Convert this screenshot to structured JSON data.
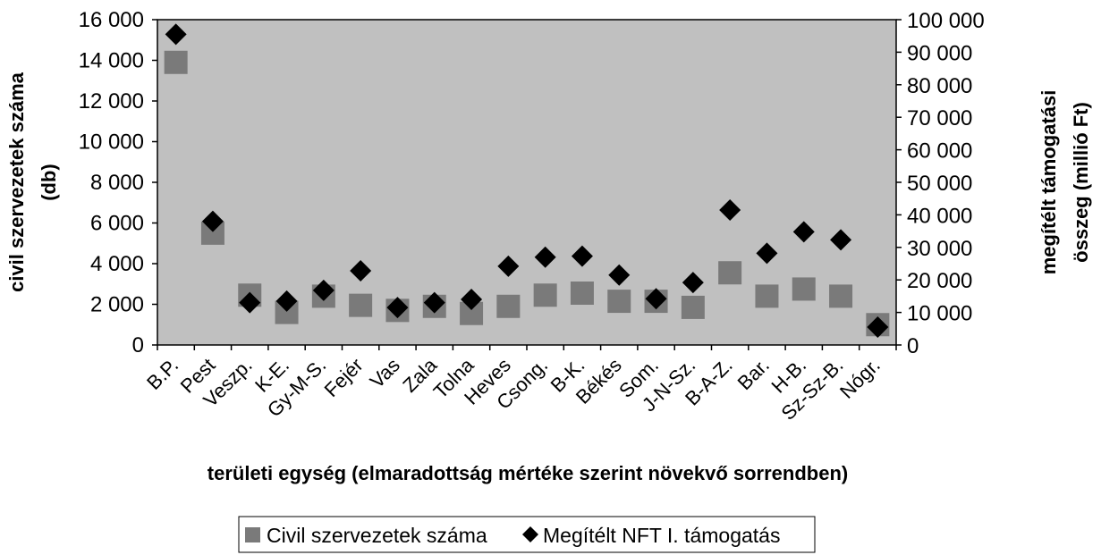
{
  "chart_data": {
    "type": "scatter",
    "categories": [
      "B.P.",
      "Pest",
      "Veszp.",
      "K-E.",
      "Gy-M-S.",
      "Fejér",
      "Vas",
      "Zala",
      "Tolna",
      "Heves",
      "Csong.",
      "B-K.",
      "Békés",
      "Som.",
      "J-N-Sz.",
      "B-A-Z.",
      "Bar.",
      "H-B.",
      "Sz-Sz-B.",
      "Nógr."
    ],
    "series": [
      {
        "name": "Civil szervezetek száma",
        "axis": "left",
        "marker": "square",
        "color": "#7a7a7a",
        "values": [
          13900,
          5500,
          2450,
          1600,
          2400,
          1950,
          1700,
          1900,
          1550,
          1900,
          2450,
          2550,
          2150,
          2150,
          1850,
          3550,
          2400,
          2750,
          2400,
          1000
        ]
      },
      {
        "name": "Megítélt NFT I. támogatás",
        "axis": "right",
        "marker": "diamond",
        "color": "#000000",
        "values": [
          95500,
          38000,
          13000,
          13500,
          16800,
          22800,
          11500,
          13000,
          14000,
          24200,
          27000,
          27300,
          21500,
          14200,
          19200,
          41500,
          28200,
          34800,
          32300,
          5500
        ]
      }
    ],
    "y_left": {
      "label_line1": "civil szervezetek száma",
      "label_line2": "(db)",
      "ylim": [
        0,
        16000
      ],
      "ticks": [
        "0",
        "2 000",
        "4 000",
        "6 000",
        "8 000",
        "10 000",
        "12 000",
        "14 000",
        "16 000"
      ]
    },
    "y_right": {
      "label_line1": "megítélt támogatási",
      "label_line2": "összeg (millió Ft)",
      "ylim": [
        0,
        100000
      ],
      "ticks": [
        "0",
        "10 000",
        "20 000",
        "30 000",
        "40 000",
        "50 000",
        "60 000",
        "70 000",
        "80 000",
        "90 000",
        "100 000"
      ]
    },
    "xlabel": "területi egység (elmaradottság mértéke szerint növekvő sorrendben)",
    "plot_background": "#c0c0c0",
    "grid": false,
    "legend_position": "bottom"
  }
}
